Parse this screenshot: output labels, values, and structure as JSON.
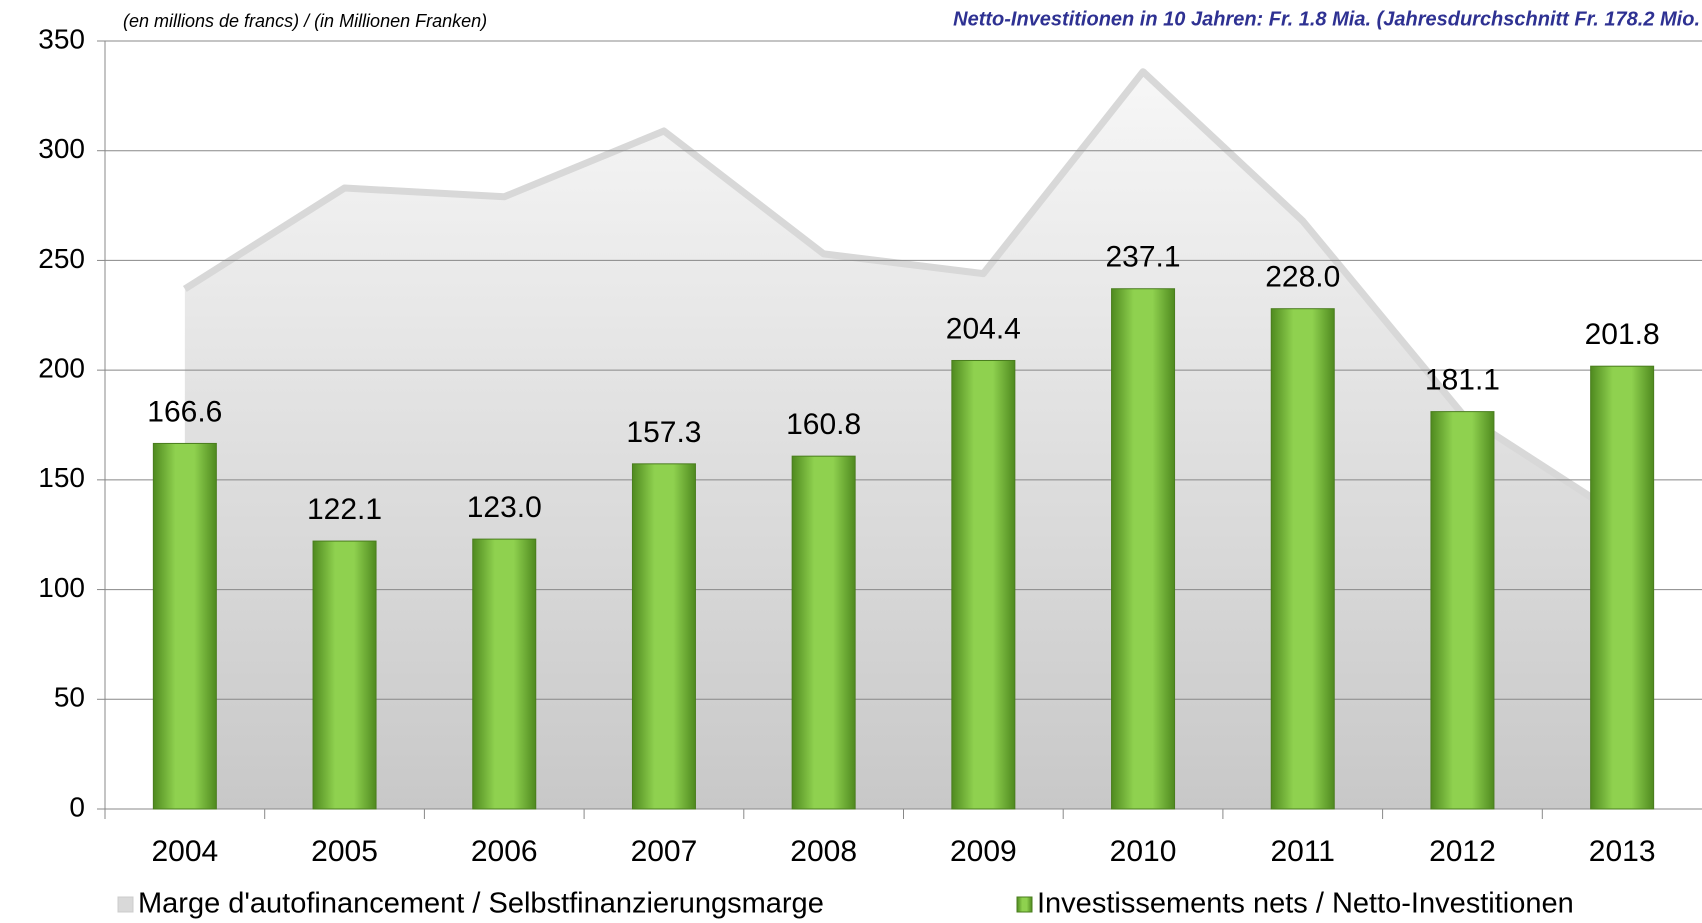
{
  "chart_data": {
    "type": "bar_area",
    "subtitle": "(en millions de francs) / (in Millionen Franken)",
    "title": "Netto-Investitionen in 10 Jahren: Fr. 1.8 Mia. (Jahresdurchschnitt Fr. 178.2 Mio.",
    "categories": [
      "2004",
      "2005",
      "2006",
      "2007",
      "2008",
      "2009",
      "2010",
      "2011",
      "2012",
      "2013"
    ],
    "series": [
      {
        "name": "Marge d'autofinancement / Selbstfinanzierungsmarge",
        "kind": "area",
        "color": "#d9d9d9",
        "values": [
          237,
          283,
          279,
          309,
          253,
          244,
          336,
          268,
          180,
          133
        ]
      },
      {
        "name": "Investissements nets / Netto-Investitionen",
        "kind": "bar",
        "color": "#7ac142",
        "values": [
          166.6,
          122.1,
          123.0,
          157.3,
          160.8,
          204.4,
          237.1,
          228.0,
          181.1,
          201.8
        ],
        "value_labels": [
          "166.6",
          "122.1",
          "123.0",
          "157.3",
          "160.8",
          "204.4",
          "237.1",
          "228.0",
          "181.1",
          "201.8"
        ]
      }
    ],
    "ylim": [
      0,
      350
    ],
    "yticks": [
      0,
      50,
      100,
      150,
      200,
      250,
      300,
      350
    ],
    "grid": true
  }
}
